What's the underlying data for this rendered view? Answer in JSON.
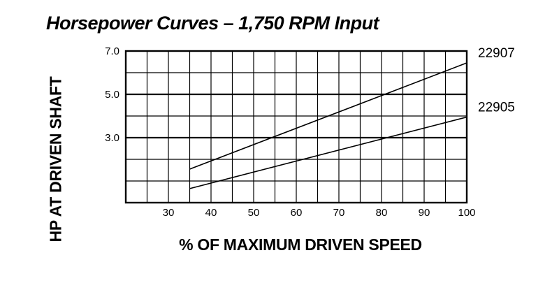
{
  "chart_data": {
    "type": "line",
    "title": "Horsepower Curves – 1,750 RPM Input",
    "xlabel": "% OF MAXIMUM DRIVEN SPEED",
    "ylabel": "HP AT DRIVEN SHAFT",
    "xlim": [
      20,
      100
    ],
    "ylim": [
      0,
      7
    ],
    "x_ticks": [
      30,
      40,
      50,
      60,
      70,
      80,
      90,
      100
    ],
    "x_tick_labels": [
      "30",
      "40",
      "50",
      "60",
      "70",
      "80",
      "90",
      "100"
    ],
    "y_ticks": [
      3,
      5,
      7
    ],
    "y_tick_labels": [
      "3.0",
      "5.0",
      "7.0"
    ],
    "x_grid_step": 5,
    "y_grid_step": 1,
    "grid": true,
    "series": [
      {
        "name": "22907",
        "x": [
          35,
          100
        ],
        "y": [
          1.55,
          6.45
        ]
      },
      {
        "name": "22905",
        "x": [
          35,
          100
        ],
        "y": [
          0.65,
          3.95
        ]
      }
    ]
  }
}
